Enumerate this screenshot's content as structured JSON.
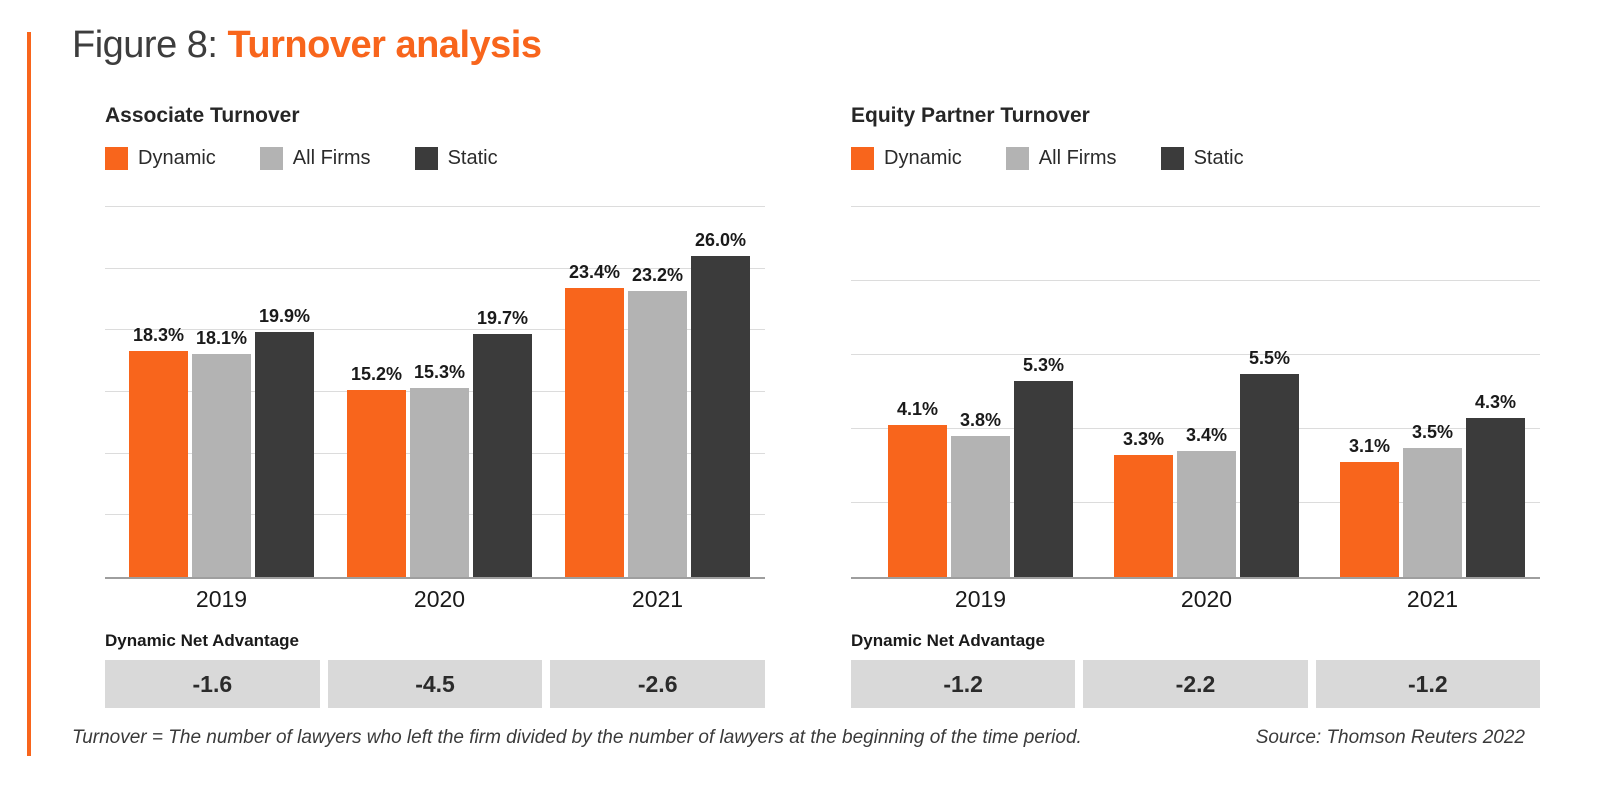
{
  "page": {
    "title_prefix": "Figure 8: ",
    "title_highlight": "Turnover analysis",
    "footnote": "Turnover = The number of lawyers who left the firm divided by the number of lawyers at the beginning of the time period.",
    "source": "Source: Thomson Reuters 2022"
  },
  "colors": {
    "accent_orange": "#F8651C",
    "all_firms_gray": "#B3B3B3",
    "static_dark": "#3B3B3B",
    "net_box_bg": "#D9D9D9",
    "gridline": "#DCDCDC",
    "baseline": "#9E9E9E"
  },
  "chart_data": [
    {
      "type": "bar",
      "title": "Associate Turnover",
      "categories": [
        "2019",
        "2020",
        "2021"
      ],
      "series": [
        {
          "name": "Dynamic",
          "color": "#F8651C",
          "values": [
            18.3,
            15.2,
            23.4
          ]
        },
        {
          "name": "All Firms",
          "color": "#B3B3B3",
          "values": [
            18.1,
            15.3,
            23.2
          ]
        },
        {
          "name": "Static",
          "color": "#3B3B3B",
          "values": [
            19.9,
            19.7,
            26.0
          ]
        }
      ],
      "value_suffix": "%",
      "ylim": [
        0,
        30
      ],
      "grid_step": 5,
      "grid": true,
      "legend_position": "top",
      "xlabel": "",
      "ylabel": "",
      "net_advantage": {
        "label": "Dynamic Net Advantage",
        "values": [
          "-1.6",
          "-4.5",
          "-2.6"
        ]
      }
    },
    {
      "type": "bar",
      "title": "Equity Partner Turnover",
      "categories": [
        "2019",
        "2020",
        "2021"
      ],
      "series": [
        {
          "name": "Dynamic",
          "color": "#F8651C",
          "values": [
            4.1,
            3.3,
            3.1
          ]
        },
        {
          "name": "All Firms",
          "color": "#B3B3B3",
          "values": [
            3.8,
            3.4,
            3.5
          ]
        },
        {
          "name": "Static",
          "color": "#3B3B3B",
          "values": [
            5.3,
            5.5,
            4.3
          ]
        }
      ],
      "value_suffix": "%",
      "ylim": [
        0,
        10
      ],
      "grid_step": 2,
      "grid": true,
      "legend_position": "top",
      "xlabel": "",
      "ylabel": "",
      "net_advantage": {
        "label": "Dynamic Net Advantage",
        "values": [
          "-1.2",
          "-2.2",
          "-1.2"
        ]
      }
    }
  ]
}
